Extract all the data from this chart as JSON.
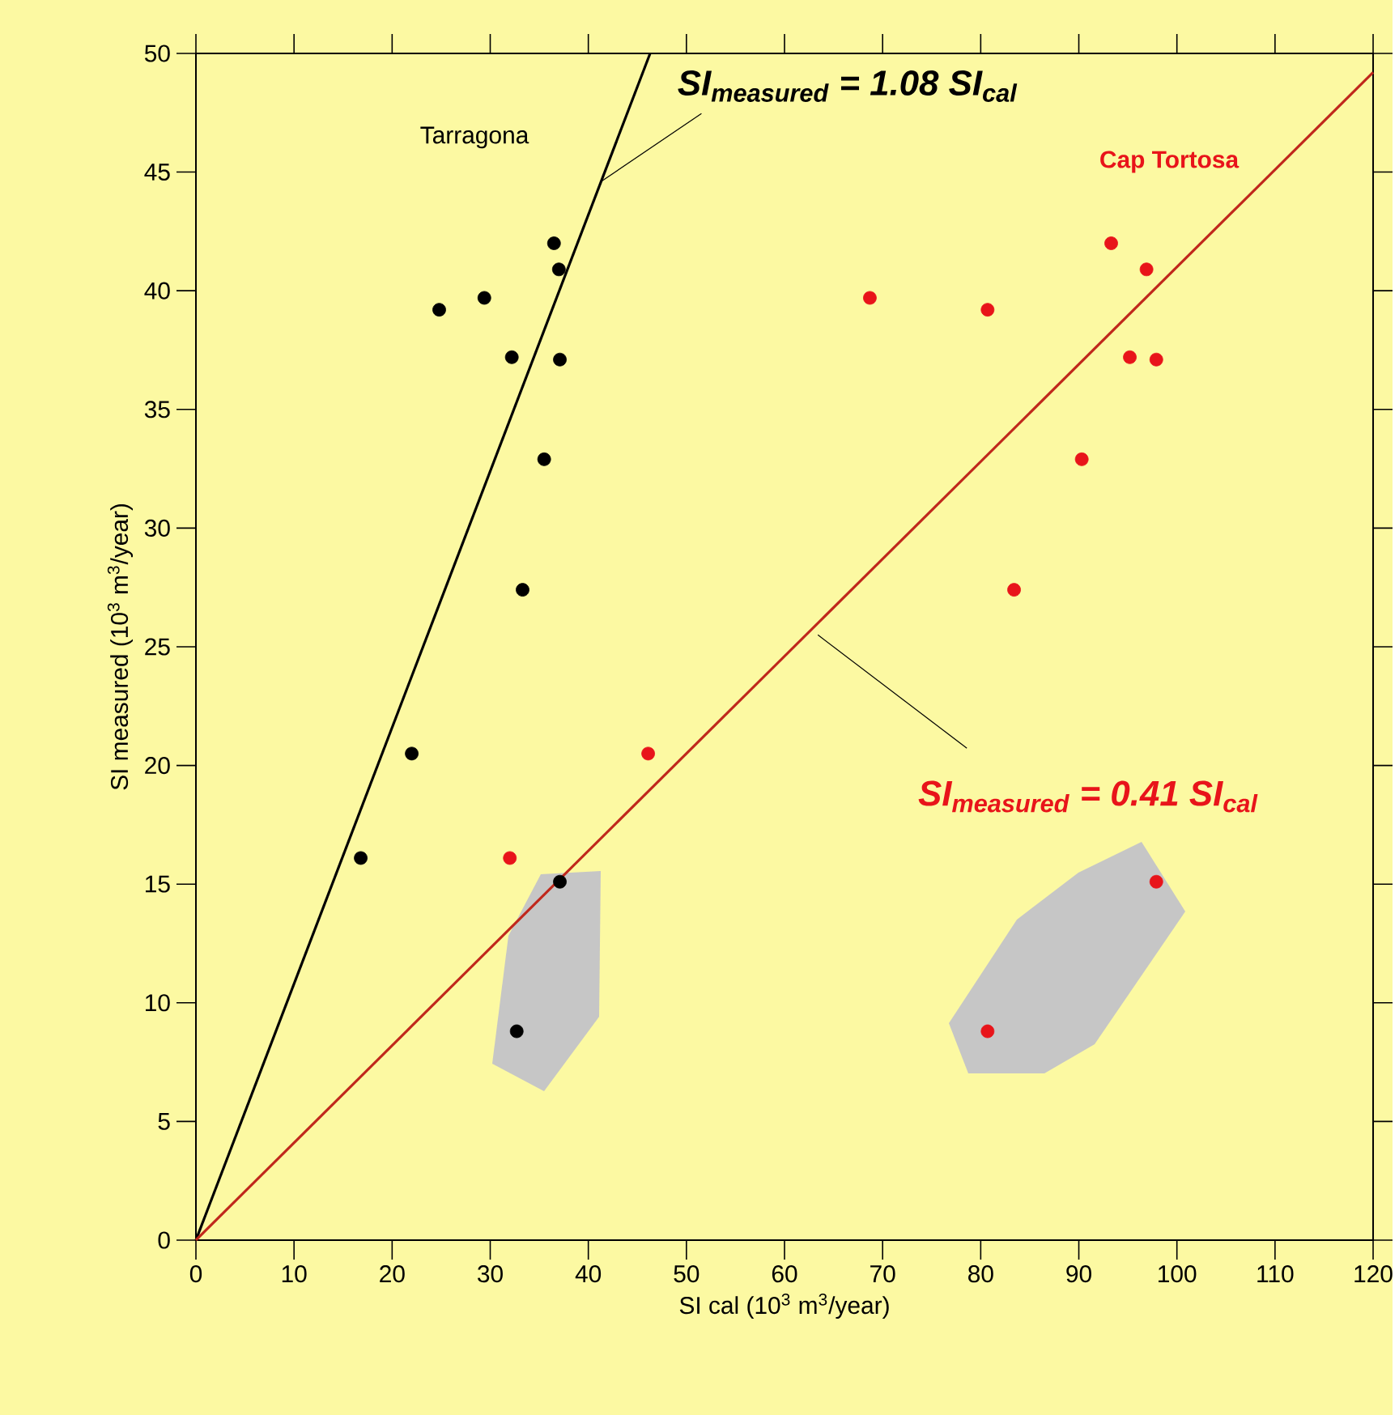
{
  "chart_data": {
    "type": "scatter",
    "xlabel": "SI cal (10$^{3}$ m$^{3}$/year)",
    "ylabel": "SI measured (10$^{3}$ m$^{3}$/year)",
    "xlim": [
      0,
      120
    ],
    "ylim": [
      0,
      50
    ],
    "xticks": [
      0,
      10,
      20,
      30,
      40,
      50,
      60,
      70,
      80,
      90,
      100,
      110,
      120
    ],
    "yticks": [
      0,
      5,
      10,
      15,
      20,
      25,
      30,
      35,
      40,
      45,
      50
    ],
    "marker": "circle",
    "legend": false,
    "grid": false,
    "annotations": [
      {
        "text": "SI$_{measured}$ = 1.08 SI$_{cal}$",
        "x": 41.3,
        "y": 44.6
      },
      {
        "text": "SI$_{measured}$ = 0.41 SI$_{cal}$",
        "x": 63.4,
        "y": 25.5
      }
    ],
    "series": [
      {
        "name": "Tarragona",
        "type": "scatter",
        "color": "#000000",
        "x": [
          16.8,
          22.0,
          24.8,
          29.4,
          32.2,
          36.5,
          37.0,
          37.1,
          35.5,
          33.3,
          37.1,
          32.7
        ],
        "values": [
          16.1,
          20.5,
          39.2,
          39.7,
          37.2,
          42.0,
          40.9,
          37.1,
          32.9,
          27.4,
          15.1,
          8.8
        ]
      },
      {
        "name": "Cap Tortosa",
        "type": "scatter",
        "color": "#e8141a",
        "x": [
          32.0,
          46.1,
          68.7,
          80.7,
          93.3,
          96.9,
          95.2,
          97.9,
          90.3,
          83.4,
          97.9,
          80.7
        ],
        "values": [
          16.1,
          20.5,
          39.7,
          39.2,
          42.0,
          40.9,
          37.2,
          37.1,
          32.9,
          27.4,
          15.1,
          8.8
        ]
      },
      {
        "type": "line",
        "marker": "none",
        "color": "#000000",
        "x": [
          0,
          46.3
        ],
        "values": [
          0,
          50
        ]
      },
      {
        "type": "line",
        "marker": "none",
        "color": "#c0281c",
        "x": [
          0,
          120
        ],
        "values": [
          0,
          49.2
        ]
      }
    ]
  }
}
